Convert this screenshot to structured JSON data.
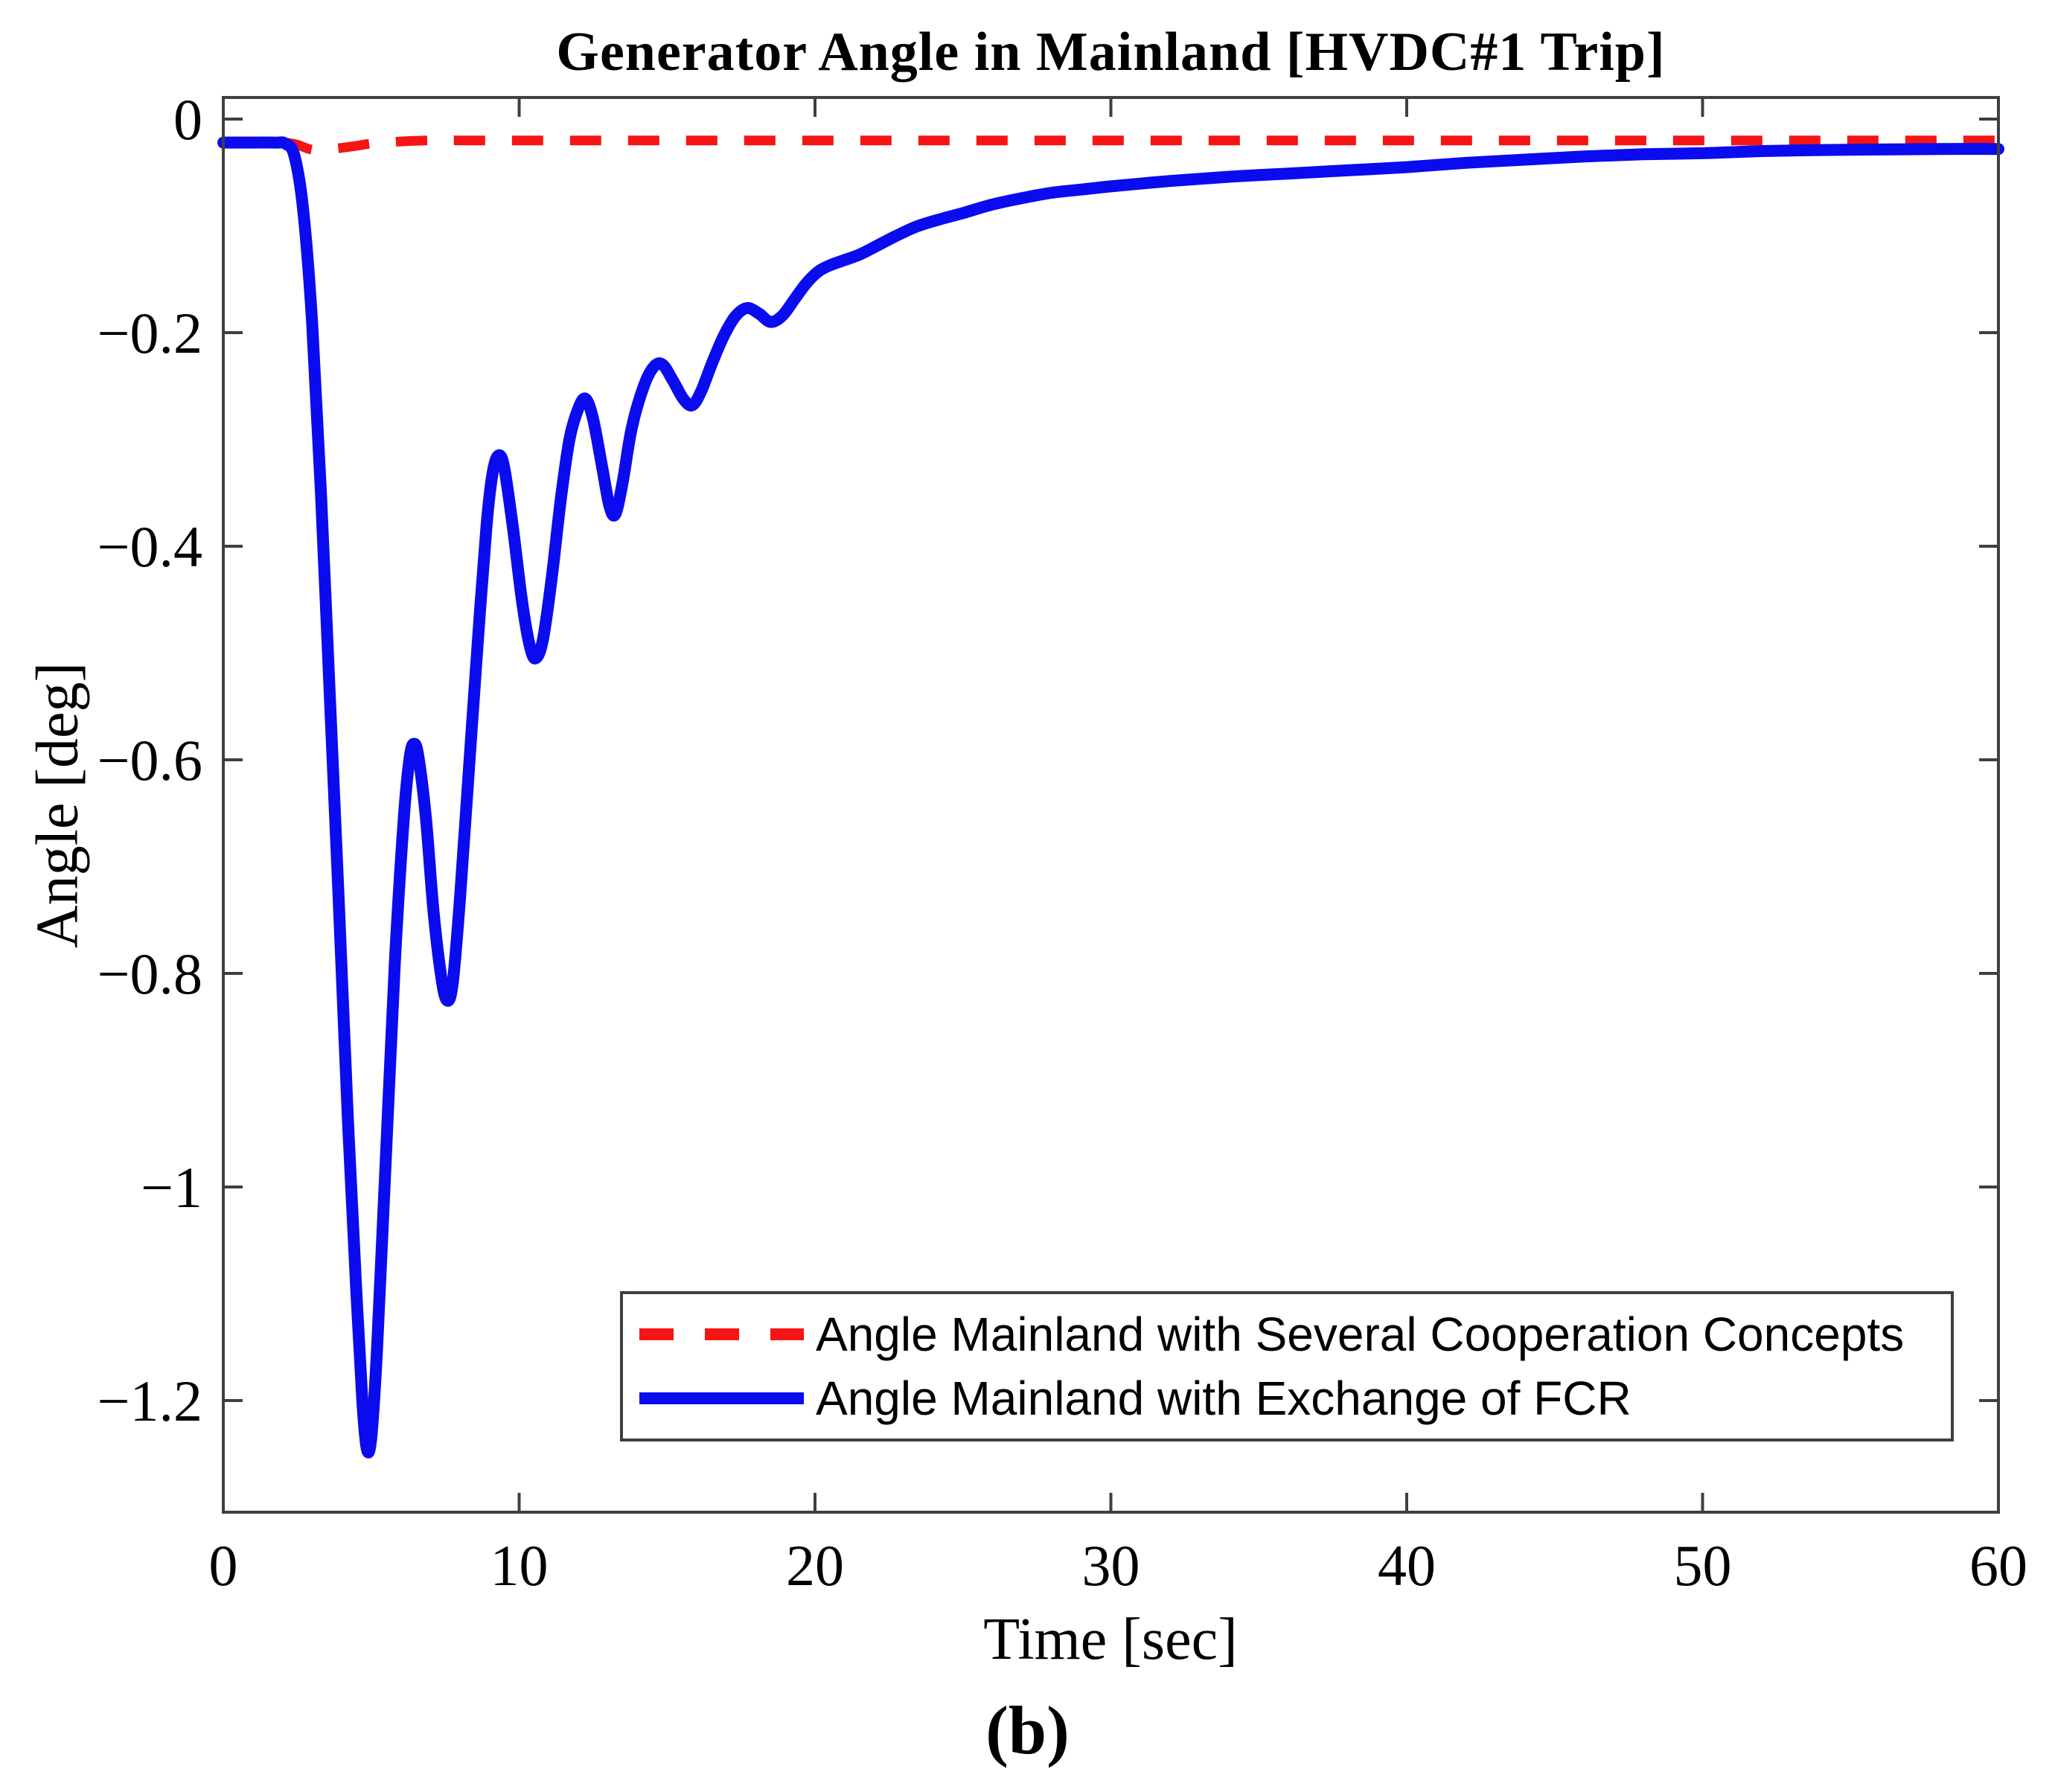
{
  "page": {
    "caption": "(b)",
    "background": "#ffffff"
  },
  "chart": {
    "title": "Generator Angle in Mainland [HVDC#1 Trip]",
    "axis_color": "#3f3f3f",
    "tick_length": 26
  },
  "chart_data": {
    "type": "line",
    "title": "Generator Angle in Mainland [HVDC#1 Trip]",
    "xlabel": "Time [sec]",
    "ylabel": "Angle [deg]",
    "xlim": [
      0,
      60
    ],
    "ylim": [
      -1.3045,
      0.0202
    ],
    "grid": false,
    "legend_position": "inside-bottom-center",
    "xticks": [
      0,
      10,
      20,
      30,
      40,
      50,
      60
    ],
    "xtick_labels": [
      "0",
      "10",
      "20",
      "30",
      "40",
      "50",
      "60"
    ],
    "yticks": [
      0,
      -0.2,
      -0.4,
      -0.6,
      -0.8,
      -1,
      -1.2
    ],
    "ytick_labels": [
      "0",
      "−0.2",
      "−0.4",
      "−0.6",
      "−0.8",
      "−1",
      "−1.2"
    ],
    "series": [
      {
        "id": "cooperation-concepts",
        "name": "Angle Mainland with Several Cooperation Concepts",
        "color": "#f71414",
        "style": "dashed",
        "line_width": 13,
        "points": [
          [
            0,
            -0.021
          ],
          [
            1.5,
            -0.021
          ],
          [
            2.1,
            -0.022
          ],
          [
            2.5,
            -0.024
          ],
          [
            2.9,
            -0.028
          ],
          [
            3.2,
            -0.029
          ],
          [
            3.6,
            -0.028
          ],
          [
            4,
            -0.027
          ],
          [
            4.5,
            -0.025
          ],
          [
            5,
            -0.023
          ],
          [
            5.5,
            -0.022
          ],
          [
            6,
            -0.021
          ],
          [
            7,
            -0.02
          ],
          [
            8,
            -0.02
          ],
          [
            10,
            -0.02
          ],
          [
            12,
            -0.02
          ],
          [
            15,
            -0.02
          ],
          [
            20,
            -0.02
          ],
          [
            25,
            -0.02
          ],
          [
            30,
            -0.02
          ],
          [
            35,
            -0.02
          ],
          [
            40,
            -0.02
          ],
          [
            45,
            -0.02
          ],
          [
            50,
            -0.02
          ],
          [
            55,
            -0.02
          ],
          [
            60,
            -0.02
          ]
        ]
      },
      {
        "id": "exchange-fcr",
        "name": "Angle Mainland with Exchange of FCR",
        "color": "#0b0bef",
        "style": "solid",
        "line_width": 16,
        "points": [
          [
            0,
            -0.022
          ],
          [
            1,
            -0.022
          ],
          [
            1.8,
            -0.022
          ],
          [
            2.1,
            -0.023
          ],
          [
            2.4,
            -0.034
          ],
          [
            2.7,
            -0.085
          ],
          [
            3,
            -0.19
          ],
          [
            3.3,
            -0.35
          ],
          [
            3.6,
            -0.54
          ],
          [
            3.9,
            -0.73
          ],
          [
            4.2,
            -0.93
          ],
          [
            4.5,
            -1.1
          ],
          [
            4.7,
            -1.2
          ],
          [
            4.85,
            -1.245
          ],
          [
            5,
            -1.235
          ],
          [
            5.2,
            -1.15
          ],
          [
            5.5,
            -0.97
          ],
          [
            5.8,
            -0.79
          ],
          [
            6.1,
            -0.655
          ],
          [
            6.3,
            -0.598
          ],
          [
            6.45,
            -0.585
          ],
          [
            6.6,
            -0.598
          ],
          [
            6.85,
            -0.655
          ],
          [
            7.1,
            -0.74
          ],
          [
            7.35,
            -0.8
          ],
          [
            7.55,
            -0.825
          ],
          [
            7.75,
            -0.81
          ],
          [
            8,
            -0.73
          ],
          [
            8.3,
            -0.61
          ],
          [
            8.6,
            -0.49
          ],
          [
            8.9,
            -0.38
          ],
          [
            9.1,
            -0.332
          ],
          [
            9.3,
            -0.315
          ],
          [
            9.5,
            -0.327
          ],
          [
            9.8,
            -0.385
          ],
          [
            10.1,
            -0.452
          ],
          [
            10.35,
            -0.492
          ],
          [
            10.55,
            -0.505
          ],
          [
            10.8,
            -0.488
          ],
          [
            11.1,
            -0.43
          ],
          [
            11.4,
            -0.358
          ],
          [
            11.7,
            -0.3
          ],
          [
            12,
            -0.271
          ],
          [
            12.25,
            -0.262
          ],
          [
            12.5,
            -0.281
          ],
          [
            12.8,
            -0.325
          ],
          [
            13.05,
            -0.362
          ],
          [
            13.25,
            -0.37
          ],
          [
            13.5,
            -0.34
          ],
          [
            13.8,
            -0.29
          ],
          [
            14.2,
            -0.251
          ],
          [
            14.55,
            -0.232
          ],
          [
            14.85,
            -0.23
          ],
          [
            15.2,
            -0.245
          ],
          [
            15.55,
            -0.262
          ],
          [
            15.85,
            -0.268
          ],
          [
            16.15,
            -0.255
          ],
          [
            16.5,
            -0.23
          ],
          [
            16.9,
            -0.204
          ],
          [
            17.3,
            -0.185
          ],
          [
            17.7,
            -0.177
          ],
          [
            18.1,
            -0.182
          ],
          [
            18.5,
            -0.19
          ],
          [
            18.9,
            -0.184
          ],
          [
            19.3,
            -0.169
          ],
          [
            19.7,
            -0.154
          ],
          [
            20.1,
            -0.143
          ],
          [
            20.5,
            -0.137
          ],
          [
            21,
            -0.132
          ],
          [
            21.5,
            -0.127
          ],
          [
            22,
            -0.12
          ],
          [
            22.7,
            -0.11
          ],
          [
            23.4,
            -0.101
          ],
          [
            24.2,
            -0.094
          ],
          [
            25,
            -0.088
          ],
          [
            26,
            -0.08
          ],
          [
            27,
            -0.074
          ],
          [
            28,
            -0.069
          ],
          [
            29,
            -0.066
          ],
          [
            30,
            -0.063
          ],
          [
            32,
            -0.058
          ],
          [
            34,
            -0.054
          ],
          [
            36,
            -0.051
          ],
          [
            38,
            -0.048
          ],
          [
            40,
            -0.045
          ],
          [
            42,
            -0.041
          ],
          [
            44,
            -0.038
          ],
          [
            46,
            -0.035
          ],
          [
            48,
            -0.033
          ],
          [
            50,
            -0.032
          ],
          [
            52,
            -0.03
          ],
          [
            54,
            -0.029
          ],
          [
            56,
            -0.0285
          ],
          [
            58,
            -0.028
          ],
          [
            60,
            -0.028
          ]
        ]
      }
    ]
  }
}
